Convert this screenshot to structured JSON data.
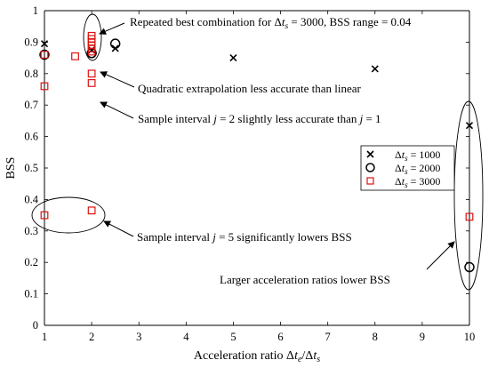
{
  "chart_data": {
    "type": "scatter",
    "xlabel": "Acceleration ratio Δt_e/Δt_s",
    "ylabel": "BSS",
    "xlim": [
      1,
      10
    ],
    "ylim": [
      0,
      1
    ],
    "xticks": [
      1,
      2,
      3,
      4,
      5,
      6,
      7,
      8,
      9,
      10
    ],
    "yticks": [
      0,
      0.1,
      0.2,
      0.3,
      0.4,
      0.5,
      0.6,
      0.7,
      0.8,
      0.9,
      1
    ],
    "legend_position": "right",
    "series": [
      {
        "name": "Δt_s = 1000",
        "marker": "x",
        "color": "#000000",
        "points": [
          [
            1,
            0.895
          ],
          [
            2,
            0.875
          ],
          [
            2.5,
            0.88
          ],
          [
            5,
            0.85
          ],
          [
            8,
            0.815
          ],
          [
            10,
            0.635
          ]
        ]
      },
      {
        "name": "Δt_s = 2000",
        "marker": "o",
        "color": "#000000",
        "points": [
          [
            1,
            0.86
          ],
          [
            2,
            0.865
          ],
          [
            2.5,
            0.895
          ],
          [
            10,
            0.185
          ]
        ]
      },
      {
        "name": "Δt_s = 3000",
        "marker": "s",
        "color": "#dd1111",
        "points": [
          [
            1,
            0.86
          ],
          [
            1,
            0.76
          ],
          [
            1,
            0.35
          ],
          [
            1.65,
            0.855
          ],
          [
            2,
            0.92
          ],
          [
            2,
            0.91
          ],
          [
            2,
            0.9
          ],
          [
            2,
            0.89
          ],
          [
            2,
            0.88
          ],
          [
            2,
            0.87
          ],
          [
            2,
            0.8
          ],
          [
            2,
            0.77
          ],
          [
            2,
            0.365
          ],
          [
            10,
            0.345
          ]
        ]
      }
    ],
    "annotations": [
      {
        "text": "Repeated best combination for Δt_s = 3000, BSS range = 0.04"
      },
      {
        "text": "Quadratic extrapolation less accurate than linear"
      },
      {
        "text": "Sample interval j = 2 slightly less accurate than j = 1"
      },
      {
        "text": "Sample interval j = 5 significantly lowers BSS"
      },
      {
        "text": "Larger acceleration ratios lower BSS"
      }
    ]
  }
}
